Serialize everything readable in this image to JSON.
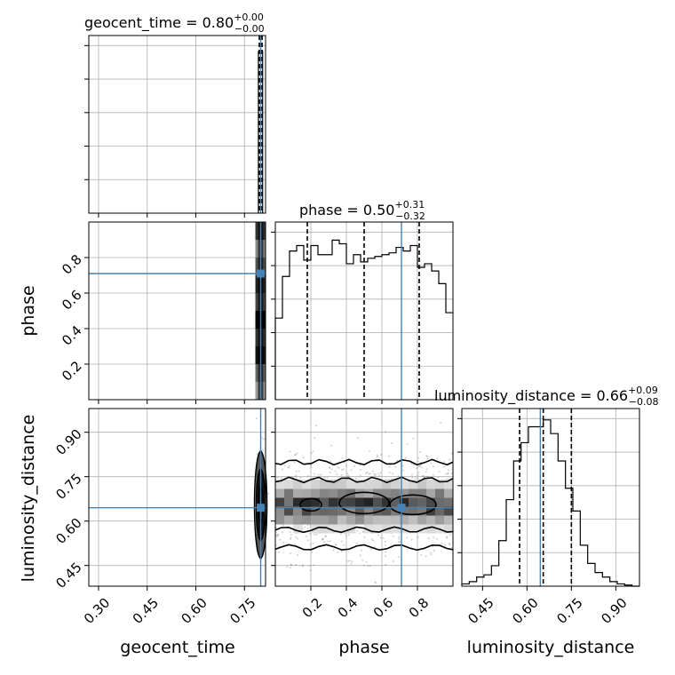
{
  "chart_data": {
    "type": "corner",
    "parameters": [
      "geocent_time",
      "phase",
      "luminosity_distance"
    ],
    "titles": [
      {
        "param": "geocent_time",
        "prefix": "geocent_time = ",
        "median": "0.80",
        "plus": "+0.00",
        "minus": "−0.00"
      },
      {
        "param": "phase",
        "prefix": "phase = ",
        "median": "0.50",
        "plus": "+0.31",
        "minus": "−0.32"
      },
      {
        "param": "luminosity_distance",
        "prefix": "luminosity_distance = ",
        "median": "0.66",
        "plus": "+0.09",
        "minus": "−0.08"
      }
    ],
    "axis_labels": {
      "x": [
        "geocent_time",
        "phase",
        "luminosity_distance"
      ],
      "y": [
        "phase",
        "luminosity_distance"
      ]
    },
    "ranges": {
      "geocent_time": [
        0.27,
        0.815
      ],
      "phase": [
        0.0,
        1.0
      ],
      "luminosity_distance": [
        0.38,
        0.98
      ]
    },
    "ticks": {
      "geocent_time": [
        "0.30",
        "0.45",
        "0.60",
        "0.75"
      ],
      "phase": [
        "0.2",
        "0.4",
        "0.6",
        "0.8"
      ],
      "luminosity_distance": [
        "0.45",
        "0.60",
        "0.75",
        "0.90"
      ]
    },
    "injection": {
      "geocent_time": 0.8,
      "phase": 0.71,
      "luminosity_distance": 0.645
    },
    "quantiles": {
      "geocent_time": [
        0.799,
        0.8,
        0.801
      ],
      "phase": [
        0.18,
        0.5,
        0.81
      ],
      "luminosity_distance": [
        0.575,
        0.655,
        0.75
      ]
    },
    "hist_phase": [
      0.45,
      0.68,
      0.82,
      0.85,
      0.77,
      0.85,
      0.8,
      0.8,
      0.88,
      0.86,
      0.75,
      0.8,
      0.76,
      0.78,
      0.79,
      0.8,
      0.81,
      0.84,
      0.82,
      0.85,
      0.73,
      0.75,
      0.71,
      0.64,
      0.48
    ],
    "hist_lumdist": [
      0.01,
      0.02,
      0.04,
      0.05,
      0.09,
      0.2,
      0.38,
      0.55,
      0.63,
      0.7,
      0.7,
      0.73,
      0.67,
      0.55,
      0.43,
      0.33,
      0.18,
      0.1,
      0.06,
      0.04,
      0.02,
      0.01,
      0.005,
      0.0
    ]
  }
}
